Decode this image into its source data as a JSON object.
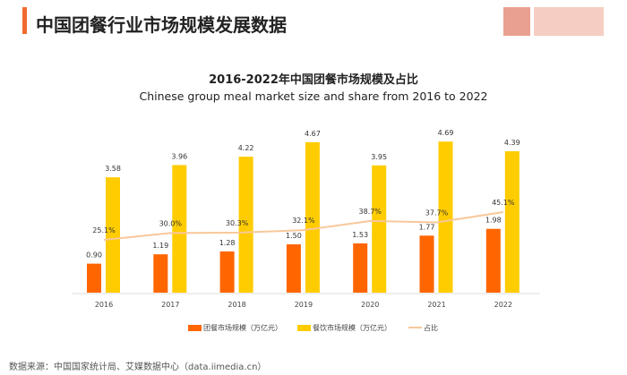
{
  "header": {
    "title": "中国团餐行业市场规模发展数据"
  },
  "chart_data": {
    "type": "bar",
    "title": "2016-2022年中国团餐市场规模及占比",
    "subtitle": "Chinese group meal market size and share from 2016 to 2022",
    "categories": [
      "2016",
      "2017",
      "2018",
      "2019",
      "2020",
      "2021",
      "2022"
    ],
    "series": [
      {
        "name": "团餐市场规模（万亿元）",
        "type": "bar",
        "color": "#ff6600",
        "values": [
          0.9,
          1.19,
          1.28,
          1.5,
          1.53,
          1.77,
          1.98
        ]
      },
      {
        "name": "餐饮市场规模（万亿元）",
        "type": "bar",
        "color": "#ffcc00",
        "values": [
          3.58,
          3.96,
          4.22,
          4.67,
          3.95,
          4.69,
          4.39
        ]
      },
      {
        "name": "占比",
        "type": "line",
        "color": "#f8c89a",
        "values": [
          25.1,
          30.0,
          30.3,
          32.1,
          38.7,
          37.7,
          45.1
        ],
        "unit": "%"
      }
    ],
    "legend": "bottom",
    "grid": false
  },
  "source": "数据来源：中国国家统计局、艾媒数据中心（data.iimedia.cn）"
}
